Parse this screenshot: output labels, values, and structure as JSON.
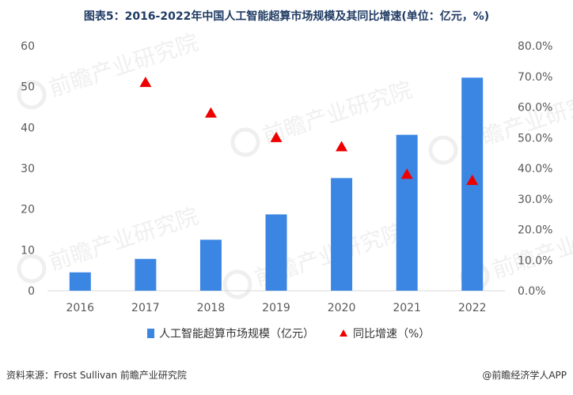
{
  "title": "图表5：2016-2022年中国人工智能超算市场规模及其同比增速(单位：亿元，%)",
  "footer": {
    "source": "资料来源：Frost Sullivan 前瞻产业研究院",
    "brand": "@前瞻经济学人APP"
  },
  "watermark": {
    "text": "前瞻产业研究院"
  },
  "colors": {
    "bar": "#3b86e3",
    "marker": "#ee0000",
    "axis_text": "#595959",
    "title": "#1f3b63"
  },
  "chart_data": {
    "type": "bar",
    "categories": [
      "2016",
      "2017",
      "2018",
      "2019",
      "2020",
      "2021",
      "2022"
    ],
    "series": [
      {
        "name": "人工智能超算市场规模（亿元）",
        "type": "bar",
        "axis": "left",
        "values": [
          4.5,
          7.8,
          12.5,
          18.7,
          27.6,
          38.2,
          52.2
        ]
      },
      {
        "name": "同比增速（%）",
        "type": "scatter",
        "marker": "triangle",
        "axis": "right",
        "values": [
          null,
          68.0,
          58.0,
          50.0,
          47.0,
          38.0,
          36.0
        ]
      }
    ],
    "y_left": {
      "min": 0,
      "max": 60,
      "ticks": [
        "0",
        "10",
        "20",
        "30",
        "40",
        "50",
        "60"
      ]
    },
    "y_right": {
      "min": 0,
      "max": 80,
      "ticks": [
        "0.0%",
        "10.0%",
        "20.0%",
        "30.0%",
        "40.0%",
        "50.0%",
        "60.0%",
        "70.0%",
        "80.0%"
      ]
    },
    "grid": false,
    "legend": "bottom"
  }
}
